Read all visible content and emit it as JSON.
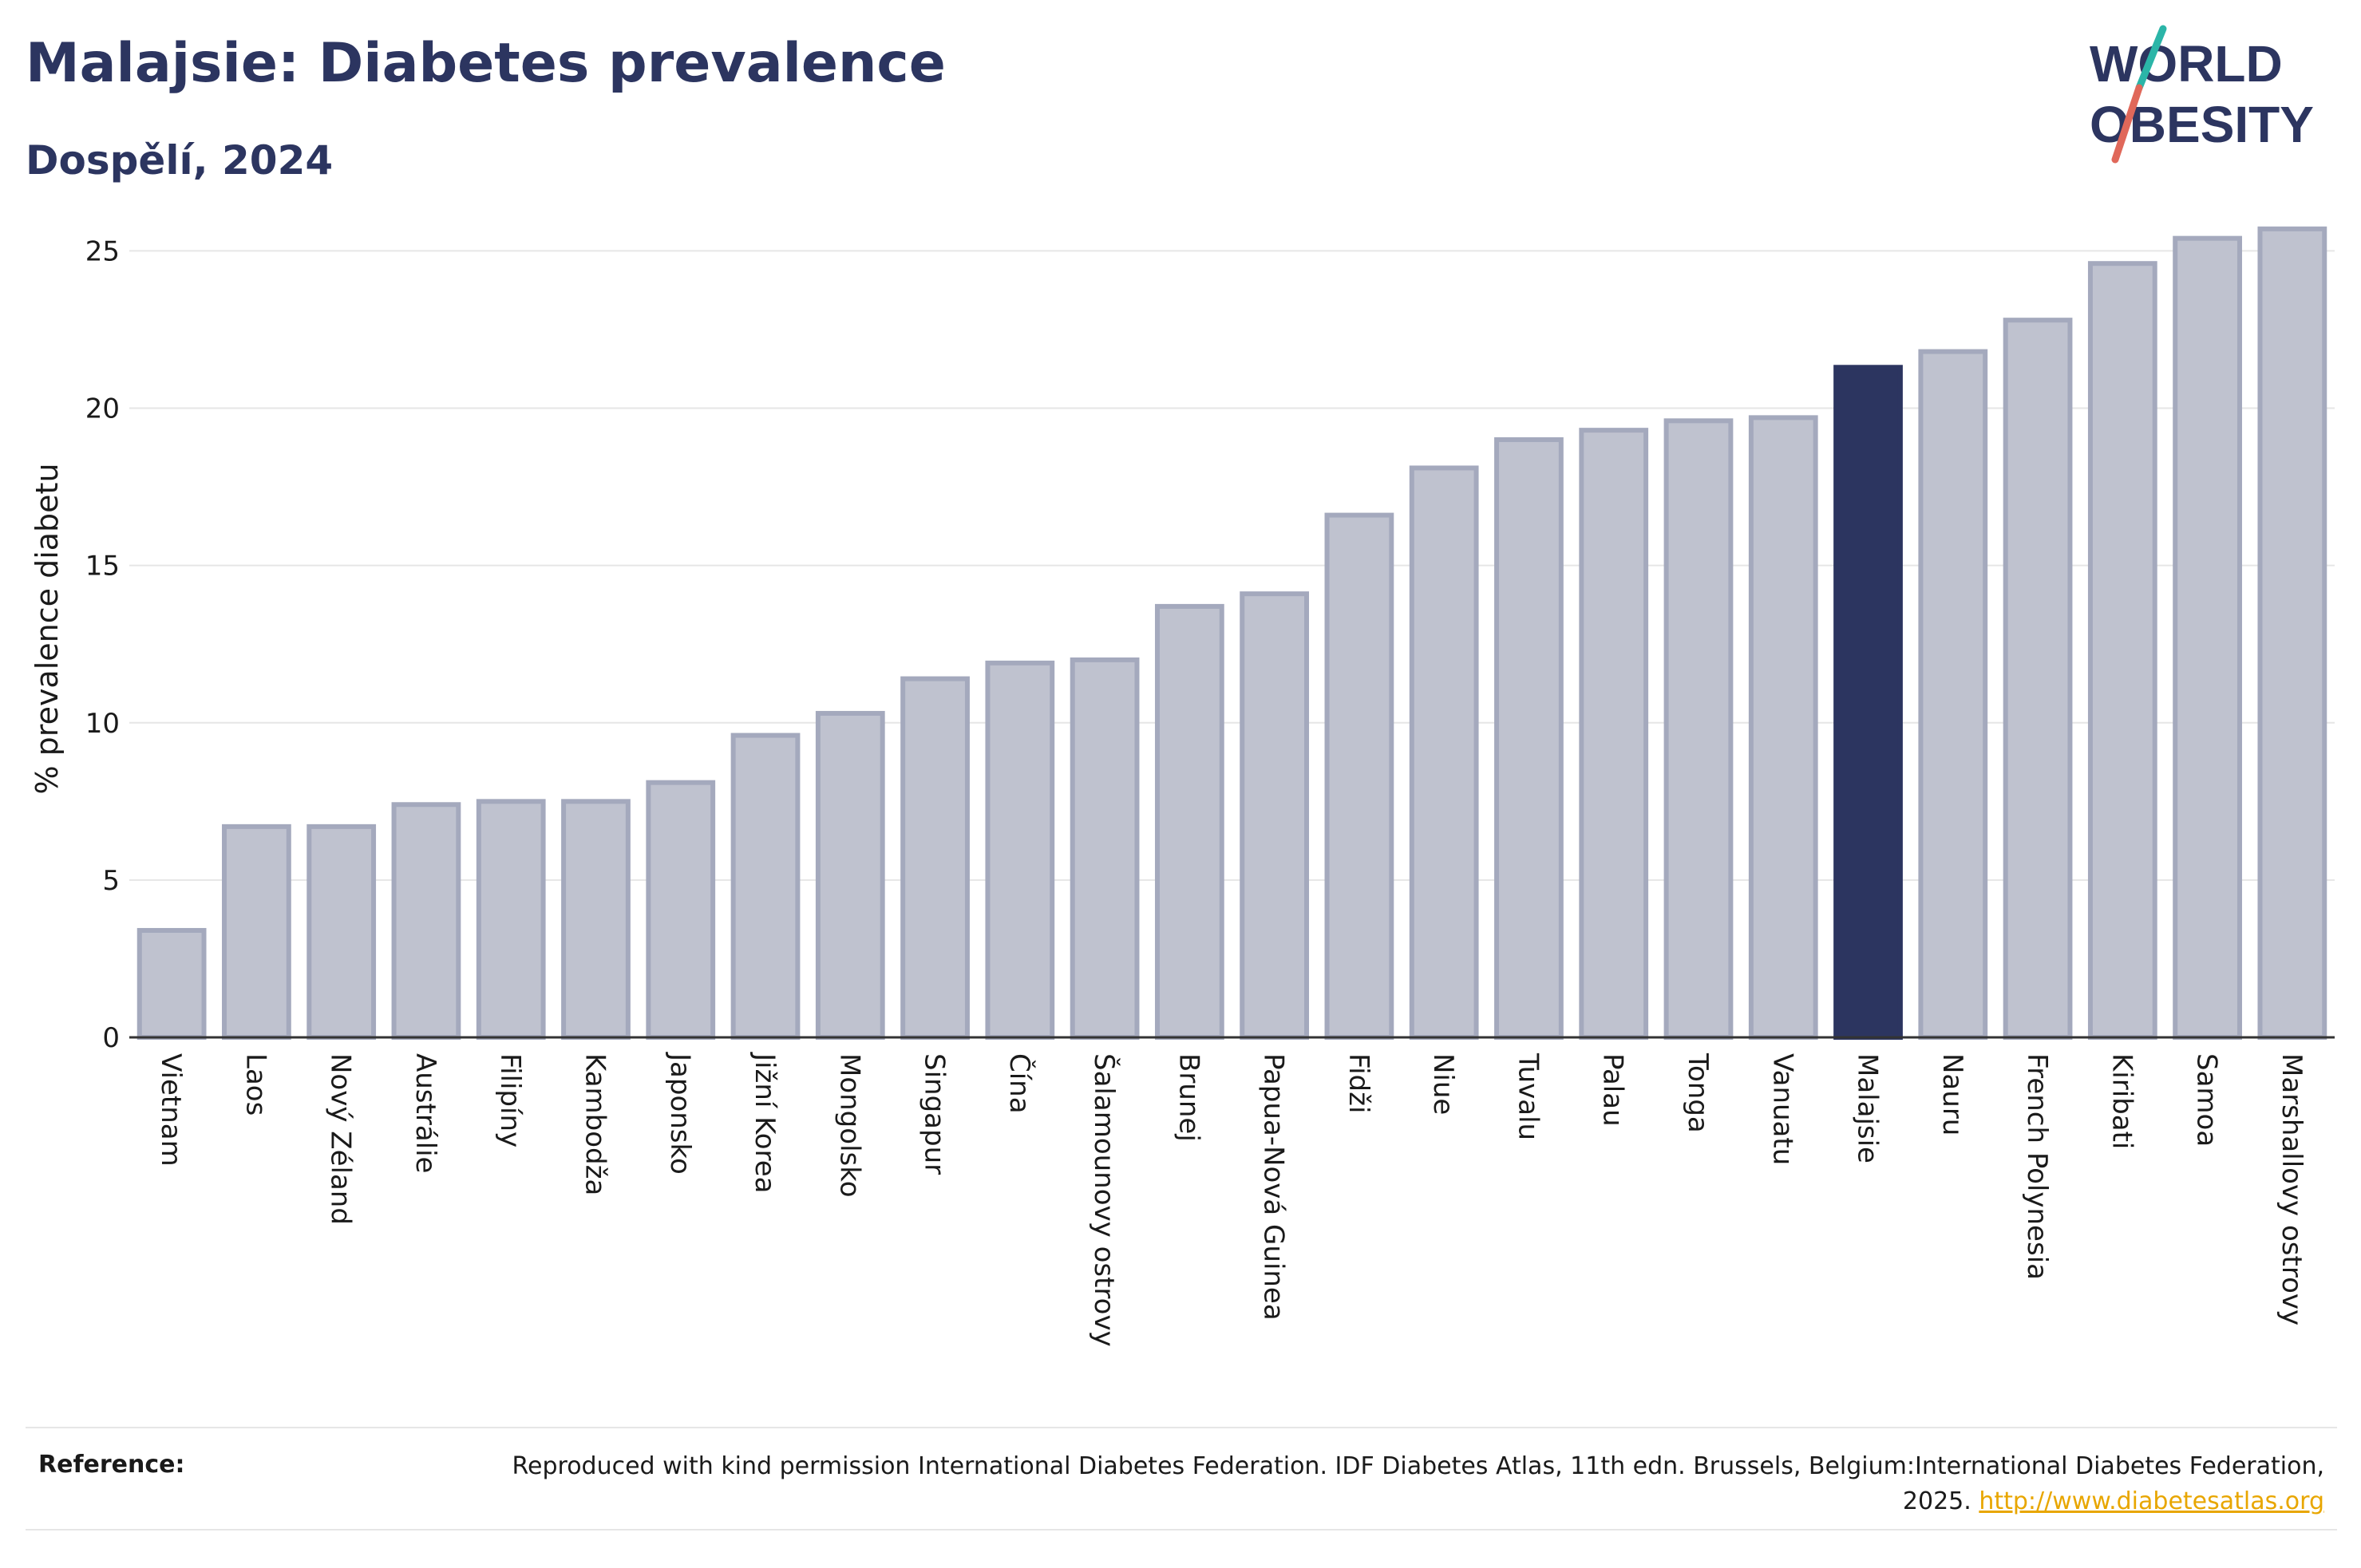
{
  "header": {
    "title": "Malajsie: Diabetes prevalence",
    "subtitle": "Dospělí, 2024"
  },
  "logo": {
    "line1": "WORLD",
    "line2": "OBESITY"
  },
  "chart_data": {
    "type": "bar",
    "title": "Malajsie: Diabetes prevalence",
    "subtitle": "Dospělí, 2024",
    "ylabel": "% prevalence diabetu",
    "xlabel": "",
    "ylim": [
      0,
      26
    ],
    "yticks": [
      0,
      5,
      10,
      15,
      20,
      25
    ],
    "grid": true,
    "highlight": "Malajsie",
    "colors": {
      "bar": "#bfc2cf",
      "bar_border": "#a4a9bd",
      "highlight": "#2c3560",
      "grid": "#e6e6e6",
      "axis": "#333333"
    },
    "categories": [
      "Vietnam",
      "Laos",
      "Nový Zéland",
      "Austrálie",
      "Filipíny",
      "Kambodža",
      "Japonsko",
      "Jižní Korea",
      "Mongolsko",
      "Singapur",
      "Čína",
      "Šalamounovy ostrovy",
      "Brunej",
      "Papua-Nová Guinea",
      "Fidži",
      "Niue",
      "Tuvalu",
      "Palau",
      "Tonga",
      "Vanuatu",
      "Malajsie",
      "Nauru",
      "French Polynesia",
      "Kiribati",
      "Samoa",
      "Marshallovy ostrovy"
    ],
    "values": [
      3.4,
      6.7,
      6.7,
      7.4,
      7.5,
      7.5,
      8.1,
      9.6,
      10.3,
      11.4,
      11.9,
      12.0,
      13.7,
      14.1,
      16.6,
      18.1,
      19.0,
      19.3,
      19.6,
      19.7,
      21.3,
      21.8,
      22.8,
      24.6,
      25.4,
      25.7
    ]
  },
  "reference": {
    "label": "Reference:",
    "text": "Reproduced with kind permission International Diabetes Federation. IDF Diabetes Atlas, 11th edn. Brussels, Belgium:International Diabetes Federation, 2025.",
    "link": "http://www.diabetesatlas.org"
  }
}
